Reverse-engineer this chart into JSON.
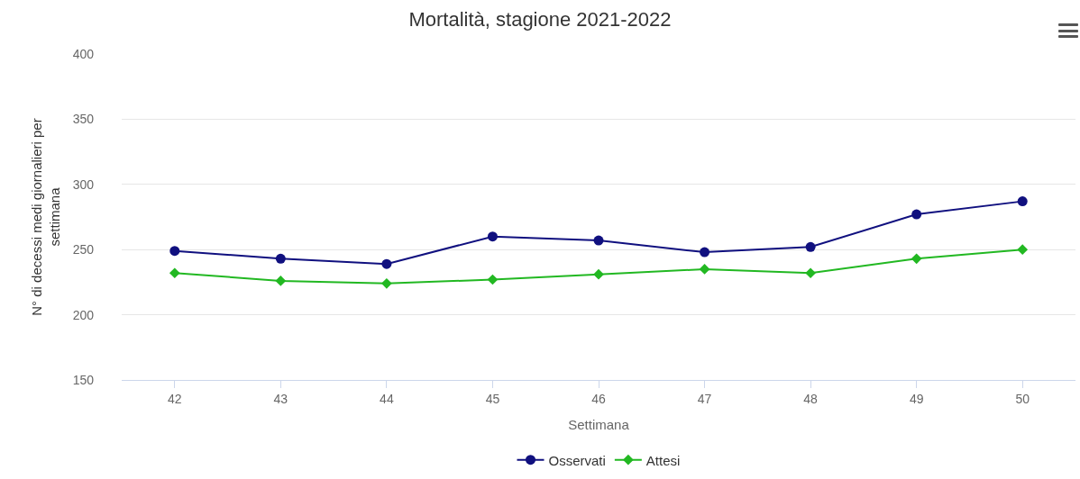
{
  "chart_data": {
    "type": "line",
    "title": "Mortalità, stagione 2021-2022",
    "xlabel": "Settimana",
    "ylabel": "N° di decessi medi giornalieri per settimana",
    "categories": [
      "42",
      "43",
      "44",
      "45",
      "46",
      "47",
      "48",
      "49",
      "50"
    ],
    "series": [
      {
        "name": "Osservati",
        "color": "#10107f",
        "marker": "circle",
        "values": [
          249,
          243,
          239,
          260,
          257,
          248,
          252,
          277,
          287
        ]
      },
      {
        "name": "Attesi",
        "color": "#22b822",
        "marker": "diamond",
        "values": [
          232,
          226,
          224,
          227,
          231,
          235,
          232,
          243,
          250
        ]
      }
    ],
    "ylim": [
      150,
      400
    ],
    "yticks": [
      150,
      200,
      250,
      300,
      350,
      400
    ],
    "grid": "y",
    "legend": "bottom",
    "line_style": "solid"
  }
}
